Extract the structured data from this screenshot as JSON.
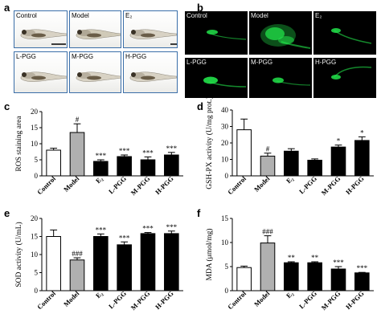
{
  "panel_labels": {
    "a": "a",
    "b": "b",
    "c": "c",
    "d": "d",
    "e": "e",
    "f": "f"
  },
  "panel_a": {
    "tiles": [
      {
        "label": "Control"
      },
      {
        "label": "Model"
      },
      {
        "label": "E₂"
      },
      {
        "label": "L-PGG"
      },
      {
        "label": "M-PGG"
      },
      {
        "label": "H-PGG"
      }
    ],
    "colors": {
      "tile_border": "#3a6ea8",
      "fish_body": "#d8d2c4",
      "fish_dark": "#3a3226"
    }
  },
  "panel_b": {
    "tiles": [
      {
        "label": "Control"
      },
      {
        "label": "Model"
      },
      {
        "label": "E₂"
      },
      {
        "label": "L-PGG"
      },
      {
        "label": "M-PGG"
      },
      {
        "label": "H-PGG"
      }
    ],
    "colors": {
      "fluorescence": "#22e24a",
      "background": "#000000"
    }
  },
  "chart_data": [
    {
      "panel": "c",
      "type": "bar",
      "ylabel": "ROS staining area",
      "categories": [
        "Control",
        "Model",
        "E₂",
        "L-PGG",
        "M-PGG",
        "H-PGG"
      ],
      "values": [
        8,
        13.5,
        4.5,
        6,
        5,
        6.5
      ],
      "errors": [
        0.6,
        2.7,
        0.5,
        0.5,
        0.9,
        0.8
      ],
      "signif": [
        "",
        "#",
        "***",
        "***",
        "***",
        "***"
      ],
      "yticks": [
        0,
        5,
        10,
        15,
        20
      ],
      "ylim": [
        0,
        20
      ],
      "fills": [
        "#ffffff",
        "#b0b0b0",
        "#000000",
        "#000000",
        "#000000",
        "#000000"
      ]
    },
    {
      "panel": "d",
      "type": "bar",
      "ylabel": "GSH-PX activity (U/mg prot.)",
      "categories": [
        "Control",
        "Model",
        "E₂",
        "L-PGG",
        "M-PGG",
        "H-PGG"
      ],
      "values": [
        28,
        12,
        15,
        9.5,
        17.5,
        21.5
      ],
      "errors": [
        6.5,
        1.8,
        1.5,
        0.8,
        1.2,
        2.2
      ],
      "signif": [
        "",
        "#",
        "",
        "",
        "*",
        "*"
      ],
      "yticks": [
        0,
        10,
        20,
        30,
        40
      ],
      "ylim": [
        0,
        40
      ],
      "fills": [
        "#ffffff",
        "#b0b0b0",
        "#000000",
        "#000000",
        "#000000",
        "#000000"
      ]
    },
    {
      "panel": "e",
      "type": "bar",
      "ylabel": "SOD activity (U/mL)",
      "categories": [
        "Control",
        "Model",
        "E₂",
        "L-PGG",
        "M-PGG",
        "H-PGG"
      ],
      "values": [
        15,
        8.5,
        15,
        12.7,
        15.8,
        15.8
      ],
      "errors": [
        1.8,
        0.6,
        0.7,
        0.8,
        0.3,
        0.7
      ],
      "signif": [
        "",
        "###",
        "***",
        "***",
        "***",
        "***"
      ],
      "yticks": [
        0,
        5,
        10,
        15,
        20
      ],
      "ylim": [
        0,
        20
      ],
      "fills": [
        "#ffffff",
        "#b0b0b0",
        "#000000",
        "#000000",
        "#000000",
        "#000000"
      ]
    },
    {
      "panel": "f",
      "type": "bar",
      "ylabel": "MDA (μmol/mg)",
      "categories": [
        "Control",
        "Model",
        "E₂",
        "L-PGG",
        "M-PGG",
        "H-PGG"
      ],
      "values": [
        4.8,
        9.9,
        5.8,
        5.8,
        4.5,
        3.7
      ],
      "errors": [
        0.3,
        1.5,
        0.2,
        0.2,
        0.5,
        0.1
      ],
      "signif": [
        "",
        "###",
        "**",
        "**",
        "***",
        "***"
      ],
      "yticks": [
        0,
        5,
        10,
        15
      ],
      "ylim": [
        0,
        15
      ],
      "fills": [
        "#ffffff",
        "#b0b0b0",
        "#000000",
        "#000000",
        "#000000",
        "#000000"
      ]
    }
  ]
}
